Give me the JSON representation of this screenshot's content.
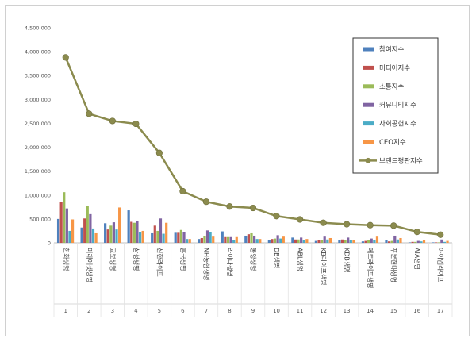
{
  "chart_data": {
    "type": "bar",
    "title": "",
    "xlabel": "",
    "ylabel": "",
    "ylim": [
      0,
      4500000
    ],
    "yticks": [
      "0",
      "500,000",
      "1,000,000",
      "1,500,000",
      "2,000,000",
      "2,500,000",
      "3,000,000",
      "3,500,000",
      "4,000,000",
      "4,500,000"
    ],
    "grid": false,
    "legend_position": "top-right",
    "categories": [
      "한화생명",
      "미래에셋생명",
      "교보생명",
      "삼성생명",
      "신한라이프",
      "흥국생명",
      "NH농협생명",
      "라이나생명",
      "동양생명",
      "DB생명",
      "ABL생명",
      "KB라이프생명",
      "KDB생명",
      "메트라이프생명",
      "푸본현대생명",
      "AIA생명",
      "아이엠라이프"
    ],
    "ranks": [
      "1",
      "2",
      "3",
      "4",
      "5",
      "6",
      "7",
      "8",
      "9",
      "10",
      "11",
      "12",
      "13",
      "14",
      "15",
      "16",
      "17"
    ],
    "series": [
      {
        "name": "참여지수",
        "color": "#4f81bd",
        "values": [
          500000,
          320000,
          410000,
          680000,
          200000,
          210000,
          80000,
          240000,
          150000,
          60000,
          110000,
          40000,
          60000,
          30000,
          60000,
          10000,
          10000
        ]
      },
      {
        "name": "미디어지수",
        "color": "#c0504d",
        "values": [
          860000,
          510000,
          280000,
          440000,
          360000,
          210000,
          100000,
          120000,
          180000,
          80000,
          70000,
          50000,
          70000,
          40000,
          30000,
          20000,
          10000
        ]
      },
      {
        "name": "소통지수",
        "color": "#9bbb59",
        "values": [
          1060000,
          770000,
          360000,
          420000,
          250000,
          270000,
          140000,
          120000,
          200000,
          90000,
          70000,
          60000,
          60000,
          50000,
          40000,
          20000,
          10000
        ]
      },
      {
        "name": "커뮤니티지수",
        "color": "#8064a2",
        "values": [
          720000,
          600000,
          430000,
          450000,
          510000,
          220000,
          260000,
          120000,
          150000,
          160000,
          110000,
          130000,
          110000,
          90000,
          150000,
          40000,
          70000
        ]
      },
      {
        "name": "사회공헌지수",
        "color": "#4bacc6",
        "values": [
          250000,
          300000,
          280000,
          230000,
          190000,
          80000,
          220000,
          60000,
          80000,
          90000,
          60000,
          70000,
          60000,
          60000,
          70000,
          30000,
          20000
        ]
      },
      {
        "name": "CEO지수",
        "color": "#f79646",
        "values": [
          490000,
          200000,
          740000,
          250000,
          420000,
          80000,
          130000,
          120000,
          80000,
          130000,
          80000,
          100000,
          60000,
          130000,
          100000,
          50000,
          40000
        ]
      }
    ],
    "line_series": {
      "name": "브랜드평판지수",
      "color": "#8b8b4e",
      "values": [
        3880000,
        2700000,
        2550000,
        2490000,
        1880000,
        1080000,
        860000,
        760000,
        730000,
        560000,
        490000,
        420000,
        390000,
        370000,
        360000,
        230000,
        170000
      ]
    }
  }
}
